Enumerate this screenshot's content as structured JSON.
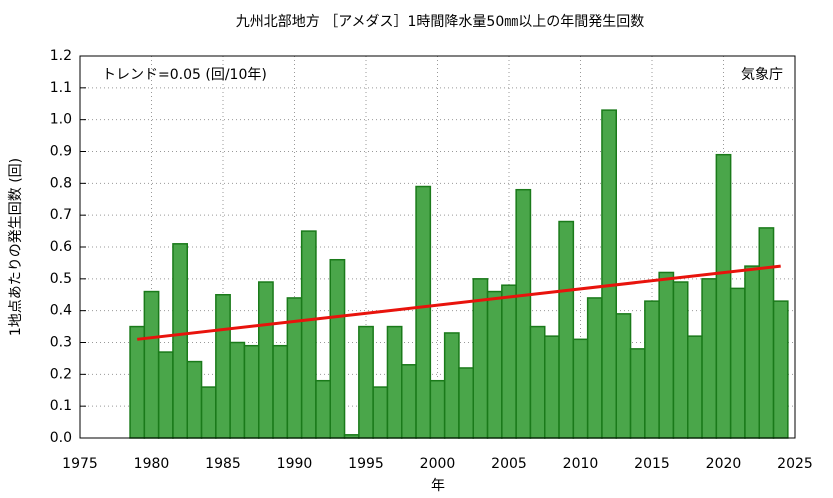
{
  "chart_data": {
    "type": "bar",
    "title": "九州北部地方 ［アメダス］1時間降水量50㎜以上の年間発生回数",
    "y_label": "1地点あたりの発生回数 (回)",
    "x_label": "年",
    "annotations": [
      "トレンド=0.05 (回/10年)",
      "気象庁"
    ],
    "x": [
      1979,
      1980,
      1981,
      1982,
      1983,
      1984,
      1985,
      1986,
      1987,
      1988,
      1989,
      1990,
      1991,
      1992,
      1993,
      1994,
      1995,
      1996,
      1997,
      1998,
      1999,
      2000,
      2001,
      2002,
      2003,
      2004,
      2005,
      2006,
      2007,
      2008,
      2009,
      2010,
      2011,
      2012,
      2013,
      2014,
      2015,
      2016,
      2017,
      2018,
      2019,
      2020,
      2021,
      2022,
      2023,
      2024
    ],
    "values": [
      0.35,
      0.46,
      0.27,
      0.61,
      0.24,
      0.16,
      0.45,
      0.3,
      0.29,
      0.49,
      0.29,
      0.44,
      0.65,
      0.18,
      0.56,
      0.01,
      0.35,
      0.16,
      0.35,
      0.23,
      0.79,
      0.18,
      0.33,
      0.22,
      0.5,
      0.46,
      0.48,
      0.78,
      0.35,
      0.32,
      0.68,
      0.31,
      0.44,
      1.03,
      0.39,
      0.28,
      0.43,
      0.52,
      0.49,
      0.32,
      0.5,
      0.89,
      0.47,
      0.54,
      0.66,
      0.43
    ],
    "color": "#4aa64a",
    "trend": {
      "x": [
        1979,
        2024
      ],
      "values": [
        0.31,
        0.54
      ],
      "color": "#e8130c"
    },
    "xlim": [
      1975,
      2025
    ],
    "xticks": [
      1975,
      1980,
      1985,
      1990,
      1995,
      2000,
      2005,
      2010,
      2015,
      2020,
      2025
    ],
    "ylim": [
      0,
      1.2
    ],
    "yticks": [
      {
        "value": 0,
        "label": "0.0"
      },
      0.1,
      0.2,
      0.3,
      0.4,
      0.5,
      0.6,
      0.7,
      0.8,
      0.9,
      {
        "value": 1,
        "label": "1.0"
      },
      1.1,
      1.2
    ],
    "grid": true
  }
}
